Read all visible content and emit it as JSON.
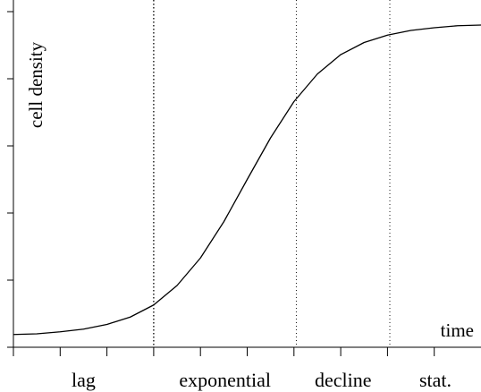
{
  "chart_data": {
    "type": "line",
    "x_label": "time",
    "y_label": "cell density",
    "x": [
      0,
      0.5,
      1,
      1.5,
      2,
      2.5,
      3,
      3.5,
      4,
      4.5,
      5,
      5.5,
      6,
      6.5,
      7,
      7.5,
      8,
      8.5,
      9,
      9.5,
      10
    ],
    "values": [
      0.19,
      0.2,
      0.23,
      0.27,
      0.34,
      0.45,
      0.63,
      0.92,
      1.33,
      1.87,
      2.5,
      3.12,
      3.66,
      4.07,
      4.36,
      4.54,
      4.65,
      4.72,
      4.76,
      4.79,
      4.8
    ],
    "color": "#000000",
    "xlim": [
      0,
      10
    ],
    "ylim": [
      0,
      5
    ],
    "xticks": [
      0,
      1,
      2,
      3,
      4,
      5,
      6,
      7,
      8,
      9
    ],
    "yticks": [
      0,
      1,
      2,
      3,
      4,
      5
    ],
    "phases": [
      {
        "name": "lag",
        "end": 3
      },
      {
        "name": "exponential",
        "end": 6.05
      },
      {
        "name": "decline",
        "end": 8.05
      },
      {
        "name": "stat.",
        "end": 10
      }
    ]
  }
}
